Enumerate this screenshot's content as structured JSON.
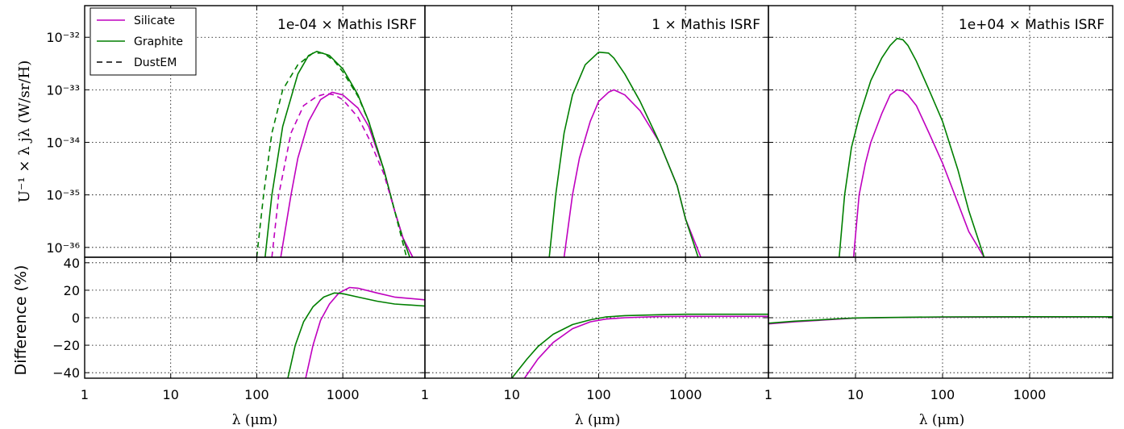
{
  "figure": {
    "ylabel_top": "U⁻¹ × λ jλ (W/sr/H)",
    "ylabel_bottom": "Difference (%)",
    "xlabel": "λ (μm)",
    "panel_titles": [
      "1e-04 × Mathis ISRF",
      "1 × Mathis ISRF",
      "1e+04 × Mathis ISRF"
    ],
    "legend": [
      {
        "label": "Silicate",
        "color": "#bf00bf",
        "style": "solid"
      },
      {
        "label": "Graphite",
        "color": "#007f00",
        "style": "solid"
      },
      {
        "label": "DustEM",
        "color": "#000000",
        "style": "dashed"
      }
    ],
    "x_ticks": [
      "1",
      "10",
      "100",
      "1000"
    ],
    "y_top_ticks": [
      "10⁻³²",
      "10⁻³³",
      "10⁻³⁴",
      "10⁻³⁵",
      "10⁻³⁶"
    ],
    "y_bottom_ticks": [
      "40",
      "20",
      "0",
      "−20",
      "−40"
    ]
  },
  "chart_data": [
    {
      "type": "line",
      "panel": "top-1",
      "title": "1e-04 × Mathis ISRF",
      "xscale": "log",
      "yscale": "log",
      "xlim": [
        1,
        9000
      ],
      "ylim": [
        6.5e-37,
        4e-32
      ],
      "series": [
        {
          "name": "Silicate",
          "color": "#bf00bf",
          "dash": false,
          "x": [
            190,
            250,
            300,
            400,
            550,
            750,
            1000,
            1500,
            2000,
            3000,
            4000,
            5000,
            6500
          ],
          "y": [
            6.5e-37,
            1e-35,
            5e-35,
            2.5e-34,
            6.5e-34,
            9e-34,
            8e-34,
            4.5e-34,
            2e-34,
            3e-35,
            5e-36,
            1.5e-36,
            6.5e-37
          ]
        },
        {
          "name": "Graphite",
          "color": "#007f00",
          "dash": false,
          "x": [
            125,
            150,
            200,
            300,
            400,
            500,
            700,
            1000,
            1500,
            2000,
            3000,
            4000,
            5000,
            6000
          ],
          "y": [
            6.5e-37,
            1e-35,
            2e-34,
            2e-33,
            4.5e-33,
            5.4e-33,
            4.5e-33,
            2.5e-33,
            8e-34,
            2.5e-34,
            3e-35,
            5e-36,
            1.5e-36,
            6.5e-37
          ]
        },
        {
          "name": "Silicate (DustEM)",
          "color": "#bf00bf",
          "dash": true,
          "x": [
            150,
            180,
            250,
            350,
            500,
            650,
            800,
            1000,
            1500,
            2000,
            3000,
            4000,
            5000,
            6500
          ],
          "y": [
            6.5e-37,
            1e-35,
            1.5e-34,
            5e-34,
            7.5e-34,
            8.5e-34,
            8e-34,
            6.5e-34,
            3e-34,
            1.2e-34,
            2.5e-35,
            5e-36,
            1.5e-36,
            6.5e-37
          ]
        },
        {
          "name": "Graphite (DustEM)",
          "color": "#007f00",
          "dash": true,
          "x": [
            100,
            120,
            150,
            200,
            300,
            450,
            600,
            800,
            1000,
            1500,
            2000,
            3000,
            4000,
            5500
          ],
          "y": [
            6.5e-37,
            1e-35,
            1.5e-34,
            1e-33,
            3e-33,
            5e-33,
            5e-33,
            3.5e-33,
            2.2e-33,
            7.5e-34,
            2.5e-34,
            3e-35,
            5e-36,
            6.5e-37
          ]
        }
      ]
    },
    {
      "type": "line",
      "panel": "top-2",
      "title": "1 × Mathis ISRF",
      "xscale": "log",
      "yscale": "log",
      "xlim": [
        1,
        9000
      ],
      "ylim": [
        6.5e-37,
        4e-32
      ],
      "series": [
        {
          "name": "Silicate",
          "color": "#bf00bf",
          "dash": false,
          "x": [
            40,
            50,
            60,
            80,
            100,
            130,
            150,
            200,
            300,
            500,
            800,
            1000,
            1500
          ],
          "y": [
            6.5e-37,
            1e-35,
            5e-35,
            2.5e-34,
            6e-34,
            9e-34,
            1e-33,
            8e-34,
            4e-34,
            1e-34,
            1.5e-35,
            3.5e-36,
            6.5e-37
          ]
        },
        {
          "name": "Graphite",
          "color": "#007f00",
          "dash": false,
          "x": [
            27,
            32,
            40,
            50,
            70,
            100,
            130,
            150,
            200,
            300,
            500,
            800,
            1000,
            1400
          ],
          "y": [
            6.5e-37,
            1e-35,
            1.5e-34,
            8e-34,
            3e-33,
            5.2e-33,
            5e-33,
            4e-33,
            2e-33,
            6e-34,
            1e-34,
            1.5e-35,
            3.5e-36,
            6.5e-37
          ]
        }
      ]
    },
    {
      "type": "line",
      "panel": "top-3",
      "title": "1e+04 × Mathis ISRF",
      "xscale": "log",
      "yscale": "log",
      "xlim": [
        1,
        9000
      ],
      "ylim": [
        6.5e-37,
        4e-32
      ],
      "series": [
        {
          "name": "Silicate",
          "color": "#bf00bf",
          "dash": false,
          "x": [
            9.5,
            11,
            13,
            15,
            20,
            25,
            30,
            35,
            40,
            50,
            70,
            100,
            150,
            200,
            300
          ],
          "y": [
            6.5e-37,
            1e-35,
            4e-35,
            1e-34,
            3.5e-34,
            8e-34,
            1e-33,
            9.5e-34,
            8e-34,
            5e-34,
            1.5e-34,
            4e-35,
            7e-36,
            2e-36,
            6.5e-37
          ]
        },
        {
          "name": "Graphite",
          "color": "#007f00",
          "dash": false,
          "x": [
            6.5,
            7.5,
            9,
            11,
            15,
            20,
            25,
            30,
            35,
            40,
            50,
            70,
            100,
            150,
            200,
            300
          ],
          "y": [
            6.5e-37,
            1e-35,
            8e-35,
            3e-34,
            1.5e-33,
            4e-33,
            7e-33,
            9.5e-33,
            9e-33,
            7e-33,
            3.5e-33,
            1e-33,
            2.5e-34,
            3e-35,
            5e-36,
            6.5e-37
          ]
        }
      ]
    },
    {
      "type": "line",
      "panel": "bottom-1",
      "xscale": "log",
      "xlim": [
        1,
        9000
      ],
      "ylim": [
        -44,
        44
      ],
      "xlabel": "λ (μm)",
      "series": [
        {
          "name": "Silicate",
          "color": "#bf00bf",
          "dash": false,
          "x": [
            370,
            450,
            550,
            700,
            900,
            1200,
            1500,
            2500,
            4000,
            9000
          ],
          "y": [
            -44,
            -20,
            -2,
            10,
            18,
            22,
            21.5,
            18,
            15,
            13
          ]
        },
        {
          "name": "Graphite",
          "color": "#007f00",
          "dash": false,
          "x": [
            230,
            280,
            350,
            450,
            600,
            800,
            1000,
            1500,
            2500,
            4000,
            9000
          ],
          "y": [
            -44,
            -20,
            -3,
            8,
            15,
            18,
            17.5,
            15,
            12,
            10,
            8.5
          ]
        }
      ]
    },
    {
      "type": "line",
      "panel": "bottom-2",
      "xscale": "log",
      "xlim": [
        1,
        9000
      ],
      "ylim": [
        -44,
        44
      ],
      "xlabel": "λ (μm)",
      "series": [
        {
          "name": "Silicate",
          "color": "#bf00bf",
          "dash": false,
          "x": [
            14,
            20,
            30,
            50,
            80,
            120,
            200,
            500,
            1000,
            9000
          ],
          "y": [
            -44,
            -30,
            -18,
            -8,
            -3,
            -1,
            0,
            0.8,
            1,
            1
          ]
        },
        {
          "name": "Graphite",
          "color": "#007f00",
          "dash": false,
          "x": [
            10,
            15,
            20,
            30,
            50,
            80,
            120,
            200,
            500,
            1000,
            9000
          ],
          "y": [
            -44,
            -30,
            -21,
            -12,
            -5,
            -1.5,
            0.5,
            1.5,
            2.2,
            2.5,
            2.5
          ]
        }
      ]
    },
    {
      "type": "line",
      "panel": "bottom-3",
      "xscale": "log",
      "xlim": [
        1,
        9000
      ],
      "ylim": [
        -44,
        44
      ],
      "xlabel": "λ (μm)",
      "series": [
        {
          "name": "Silicate",
          "color": "#bf00bf",
          "dash": false,
          "x": [
            1,
            2,
            4,
            7,
            10,
            20,
            50,
            100,
            1000,
            9000
          ],
          "y": [
            -4.5,
            -3,
            -1.8,
            -0.8,
            -0.3,
            0,
            0.3,
            0.4,
            0.5,
            0.5
          ]
        },
        {
          "name": "Graphite",
          "color": "#007f00",
          "dash": false,
          "x": [
            1,
            2,
            4,
            7,
            10,
            20,
            50,
            100,
            1000,
            9000
          ],
          "y": [
            -4,
            -2.5,
            -1.5,
            -0.6,
            -0.2,
            0.1,
            0.4,
            0.6,
            0.7,
            0.7
          ]
        }
      ]
    }
  ]
}
